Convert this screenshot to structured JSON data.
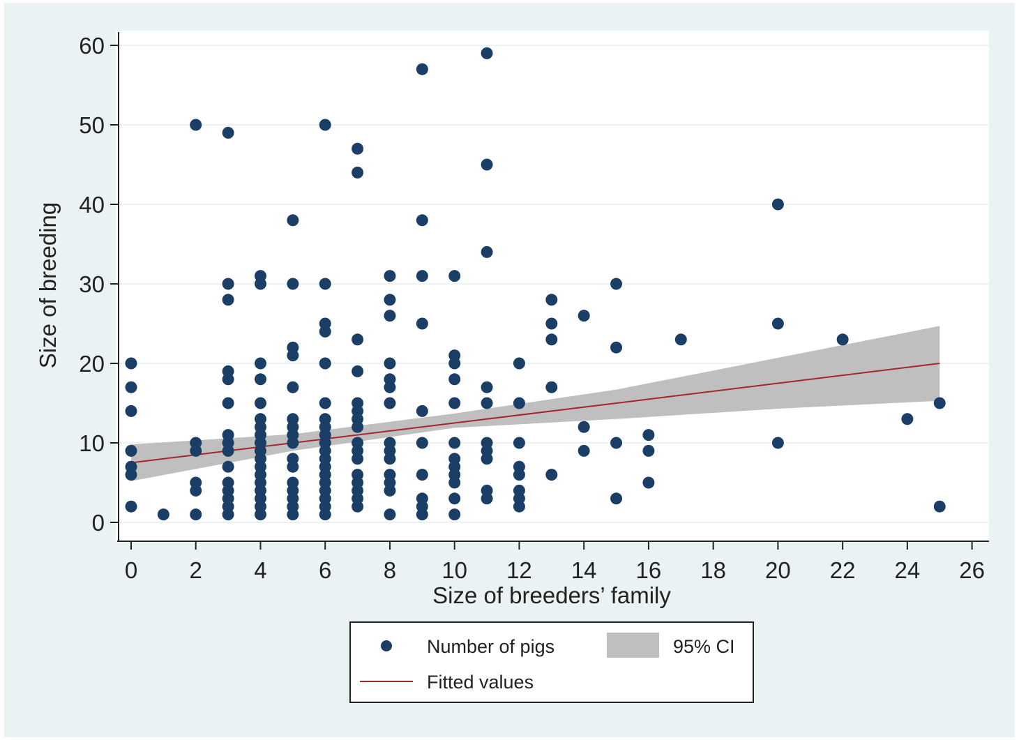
{
  "chart_data": {
    "type": "scatter",
    "xlabel": "Size of breeders’ family",
    "ylabel": "Size of breeding",
    "xlim": [
      0,
      26
    ],
    "ylim": [
      0,
      60
    ],
    "x_ticks": [
      0,
      2,
      4,
      6,
      8,
      10,
      12,
      14,
      16,
      18,
      20,
      22,
      24,
      26
    ],
    "y_ticks": [
      0,
      10,
      20,
      30,
      40,
      50,
      60
    ],
    "grid": "horizontal",
    "legend_position": "bottom",
    "colors": {
      "points": "#1a3e66",
      "fit_line": "#a3262c",
      "ci_band": "#bfbfbf",
      "background": "#eaf2f3",
      "plot_area": "#ffffff"
    },
    "series": [
      {
        "name": "Number of pigs",
        "kind": "scatter",
        "points": [
          [
            0,
            2
          ],
          [
            0,
            6
          ],
          [
            0,
            7
          ],
          [
            0,
            9
          ],
          [
            0,
            14
          ],
          [
            0,
            17
          ],
          [
            0,
            20
          ],
          [
            1,
            1
          ],
          [
            2,
            1
          ],
          [
            2,
            4
          ],
          [
            2,
            5
          ],
          [
            2,
            9
          ],
          [
            2,
            10
          ],
          [
            2,
            50
          ],
          [
            3,
            1
          ],
          [
            3,
            2
          ],
          [
            3,
            3
          ],
          [
            3,
            4
          ],
          [
            3,
            5
          ],
          [
            3,
            7
          ],
          [
            3,
            9
          ],
          [
            3,
            10
          ],
          [
            3,
            11
          ],
          [
            3,
            15
          ],
          [
            3,
            18
          ],
          [
            3,
            19
          ],
          [
            3,
            28
          ],
          [
            3,
            30
          ],
          [
            3,
            49
          ],
          [
            4,
            1
          ],
          [
            4,
            2
          ],
          [
            4,
            3
          ],
          [
            4,
            4
          ],
          [
            4,
            5
          ],
          [
            4,
            6
          ],
          [
            4,
            7
          ],
          [
            4,
            8
          ],
          [
            4,
            9
          ],
          [
            4,
            10
          ],
          [
            4,
            11
          ],
          [
            4,
            12
          ],
          [
            4,
            13
          ],
          [
            4,
            15
          ],
          [
            4,
            18
          ],
          [
            4,
            20
          ],
          [
            4,
            30
          ],
          [
            4,
            31
          ],
          [
            5,
            1
          ],
          [
            5,
            2
          ],
          [
            5,
            3
          ],
          [
            5,
            4
          ],
          [
            5,
            5
          ],
          [
            5,
            7
          ],
          [
            5,
            8
          ],
          [
            5,
            10
          ],
          [
            5,
            11
          ],
          [
            5,
            12
          ],
          [
            5,
            13
          ],
          [
            5,
            17
          ],
          [
            5,
            21
          ],
          [
            5,
            22
          ],
          [
            5,
            30
          ],
          [
            5,
            38
          ],
          [
            6,
            1
          ],
          [
            6,
            2
          ],
          [
            6,
            3
          ],
          [
            6,
            4
          ],
          [
            6,
            5
          ],
          [
            6,
            6
          ],
          [
            6,
            7
          ],
          [
            6,
            8
          ],
          [
            6,
            9
          ],
          [
            6,
            10
          ],
          [
            6,
            11
          ],
          [
            6,
            12
          ],
          [
            6,
            13
          ],
          [
            6,
            15
          ],
          [
            6,
            20
          ],
          [
            6,
            24
          ],
          [
            6,
            25
          ],
          [
            6,
            30
          ],
          [
            6,
            50
          ],
          [
            7,
            2
          ],
          [
            7,
            3
          ],
          [
            7,
            4
          ],
          [
            7,
            5
          ],
          [
            7,
            6
          ],
          [
            7,
            8
          ],
          [
            7,
            9
          ],
          [
            7,
            10
          ],
          [
            7,
            12
          ],
          [
            7,
            13
          ],
          [
            7,
            14
          ],
          [
            7,
            15
          ],
          [
            7,
            19
          ],
          [
            7,
            23
          ],
          [
            7,
            44
          ],
          [
            7,
            47
          ],
          [
            8,
            1
          ],
          [
            8,
            4
          ],
          [
            8,
            5
          ],
          [
            8,
            6
          ],
          [
            8,
            8
          ],
          [
            8,
            9
          ],
          [
            8,
            10
          ],
          [
            8,
            15
          ],
          [
            8,
            17
          ],
          [
            8,
            18
          ],
          [
            8,
            20
          ],
          [
            8,
            26
          ],
          [
            8,
            28
          ],
          [
            8,
            31
          ],
          [
            9,
            1
          ],
          [
            9,
            2
          ],
          [
            9,
            3
          ],
          [
            9,
            6
          ],
          [
            9,
            10
          ],
          [
            9,
            14
          ],
          [
            9,
            25
          ],
          [
            9,
            31
          ],
          [
            9,
            38
          ],
          [
            9,
            57
          ],
          [
            10,
            1
          ],
          [
            10,
            3
          ],
          [
            10,
            5
          ],
          [
            10,
            6
          ],
          [
            10,
            7
          ],
          [
            10,
            8
          ],
          [
            10,
            10
          ],
          [
            10,
            15
          ],
          [
            10,
            18
          ],
          [
            10,
            20
          ],
          [
            10,
            21
          ],
          [
            10,
            31
          ],
          [
            11,
            3
          ],
          [
            11,
            4
          ],
          [
            11,
            8
          ],
          [
            11,
            9
          ],
          [
            11,
            10
          ],
          [
            11,
            15
          ],
          [
            11,
            17
          ],
          [
            11,
            34
          ],
          [
            11,
            45
          ],
          [
            11,
            59
          ],
          [
            12,
            2
          ],
          [
            12,
            3
          ],
          [
            12,
            4
          ],
          [
            12,
            6
          ],
          [
            12,
            7
          ],
          [
            12,
            10
          ],
          [
            12,
            15
          ],
          [
            12,
            20
          ],
          [
            13,
            6
          ],
          [
            13,
            17
          ],
          [
            13,
            23
          ],
          [
            13,
            25
          ],
          [
            13,
            28
          ],
          [
            14,
            9
          ],
          [
            14,
            12
          ],
          [
            14,
            26
          ],
          [
            15,
            3
          ],
          [
            15,
            10
          ],
          [
            15,
            22
          ],
          [
            15,
            30
          ],
          [
            16,
            5
          ],
          [
            16,
            9
          ],
          [
            16,
            11
          ],
          [
            17,
            23
          ],
          [
            20,
            10
          ],
          [
            20,
            25
          ],
          [
            20,
            40
          ],
          [
            22,
            23
          ],
          [
            24,
            13
          ],
          [
            25,
            2
          ],
          [
            25,
            15
          ]
        ]
      },
      {
        "name": "Fitted values",
        "kind": "line",
        "x": [
          0,
          25
        ],
        "y": [
          7.5,
          20
        ]
      },
      {
        "name": "95% CI",
        "kind": "band",
        "x": [
          0,
          5,
          10,
          15,
          20,
          25
        ],
        "lower": [
          5.2,
          9.0,
          11.9,
          13.0,
          14.3,
          15.3
        ],
        "upper": [
          9.8,
          11.1,
          13.7,
          16.7,
          20.7,
          24.7
        ]
      }
    ]
  }
}
